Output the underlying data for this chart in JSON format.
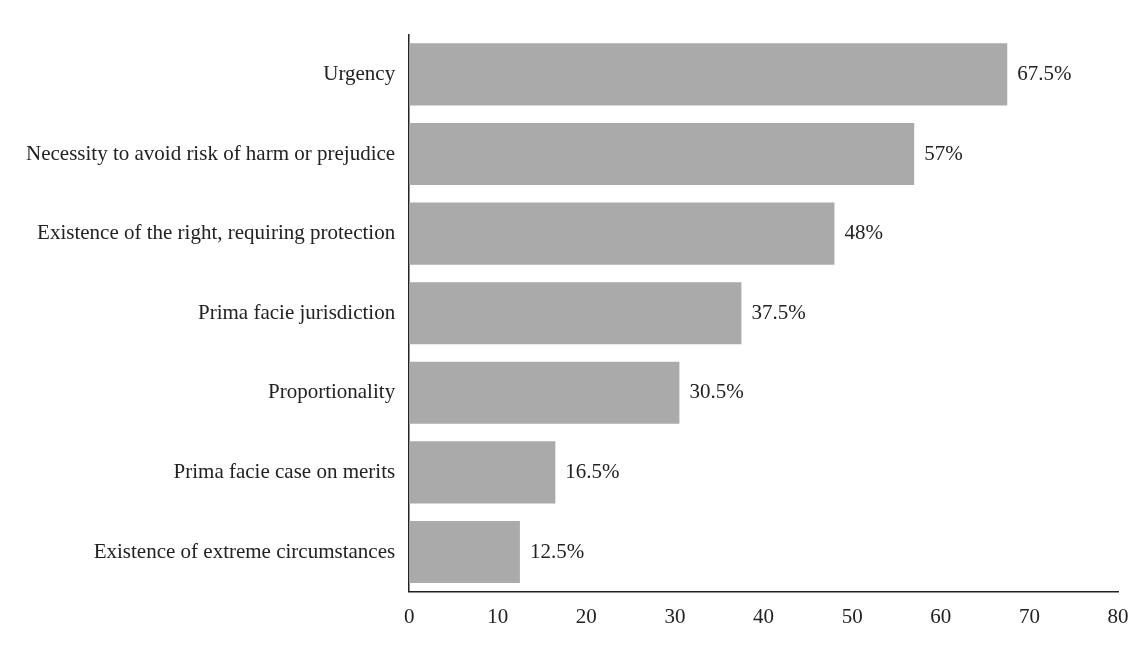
{
  "chart_data": {
    "type": "bar",
    "orientation": "horizontal",
    "categories": [
      "Urgency",
      "Necessity to avoid risk of harm or prejudice",
      "Existence of the right, requiring protection",
      "Prima facie jurisdiction",
      "Proportionality",
      "Prima facie case on merits",
      "Existence of extreme circumstances"
    ],
    "values": [
      67.5,
      57,
      48,
      37.5,
      30.5,
      16.5,
      12.5
    ],
    "value_labels": [
      "67.5%",
      "57%",
      "48%",
      "37.5%",
      "30.5%",
      "16.5%",
      "12.5%"
    ],
    "color": "#aaaaaa",
    "xlim": [
      0,
      80
    ],
    "xticks": [
      0,
      10,
      20,
      30,
      40,
      50,
      60,
      70,
      80
    ],
    "grid": false,
    "legend": false
  }
}
